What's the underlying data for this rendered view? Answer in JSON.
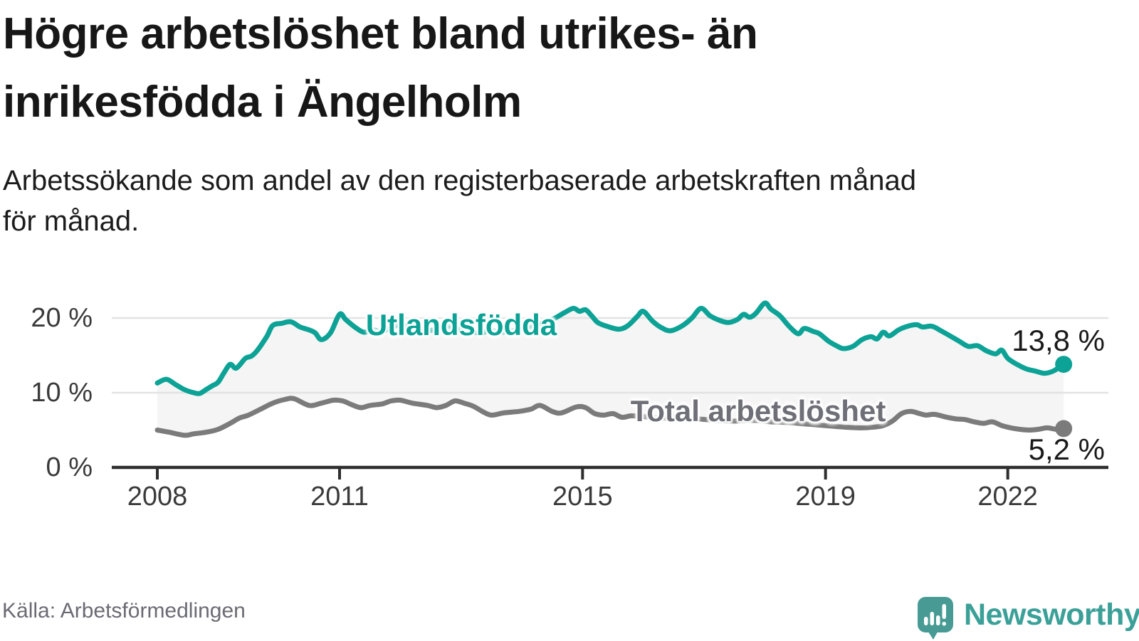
{
  "header": {
    "title_lines": [
      "Högre arbetslöshet bland utrikes- än",
      "inrikesfödda i Ängelholm"
    ],
    "subtitle_lines": [
      "Arbetssökande som andel av den registerbaserade arbetskraften månad",
      "för månad."
    ]
  },
  "footer": {
    "source": "Källa: Arbetsförmedlingen",
    "brand": "Newsworthy"
  },
  "colors": {
    "accent_teal": "#0ca296",
    "line_gray": "#7b7b7b",
    "fill_between": "#f5f5f5",
    "gridline": "#e3e3e3",
    "axis": "#2e2e2e",
    "tick_label": "#3a3a3a",
    "brand_teal": "#3ba098",
    "logo_teal": "#479b94"
  },
  "chart_data": {
    "type": "line",
    "title": "Högre arbetslöshet bland utrikes- än inrikesfödda i Ängelholm",
    "subtitle": "Arbetssökande som andel av den registerbaserade arbetskraften månad för månad.",
    "unit": "%",
    "grid": true,
    "legend_position": "inline-labels",
    "xlim": [
      2007.25,
      2023.66
    ],
    "ylim": [
      0,
      23
    ],
    "x_ticks": [
      {
        "v": 2008,
        "label": "2008"
      },
      {
        "v": 2011,
        "label": "2011"
      },
      {
        "v": 2015,
        "label": "2015"
      },
      {
        "v": 2019,
        "label": "2019"
      },
      {
        "v": 2022,
        "label": "2022"
      }
    ],
    "y_ticks": [
      {
        "v": 0,
        "label": "0 %"
      },
      {
        "v": 10,
        "label": "10 %"
      },
      {
        "v": 20,
        "label": "20 %"
      }
    ],
    "series": [
      {
        "name": "Utlandsfödda",
        "color": "#0ca296",
        "label_color": "#0ca296",
        "end_label": "13,8 %",
        "end_value": 13.8,
        "points": [
          [
            2008.0,
            11.3
          ],
          [
            2008.15,
            11.8
          ],
          [
            2008.3,
            11.1
          ],
          [
            2008.45,
            10.4
          ],
          [
            2008.6,
            10.0
          ],
          [
            2008.7,
            9.9
          ],
          [
            2008.8,
            10.4
          ],
          [
            2008.9,
            10.9
          ],
          [
            2009.0,
            11.4
          ],
          [
            2009.1,
            12.7
          ],
          [
            2009.2,
            13.8
          ],
          [
            2009.3,
            13.3
          ],
          [
            2009.45,
            14.6
          ],
          [
            2009.55,
            14.9
          ],
          [
            2009.65,
            15.7
          ],
          [
            2009.8,
            17.5
          ],
          [
            2009.9,
            19.0
          ],
          [
            2010.05,
            19.3
          ],
          [
            2010.2,
            19.5
          ],
          [
            2010.35,
            18.8
          ],
          [
            2010.5,
            18.4
          ],
          [
            2010.6,
            18.0
          ],
          [
            2010.7,
            17.1
          ],
          [
            2010.85,
            18.0
          ],
          [
            2011.0,
            20.5
          ],
          [
            2011.1,
            19.8
          ],
          [
            2011.25,
            18.8
          ],
          [
            2011.4,
            18.1
          ],
          [
            2011.55,
            18.4
          ],
          [
            2011.7,
            18.2
          ],
          [
            2011.85,
            18.7
          ],
          [
            2012.0,
            19.1
          ],
          [
            2012.2,
            18.6
          ],
          [
            2012.4,
            18.3
          ],
          [
            2012.6,
            18.5
          ],
          [
            2012.75,
            18.9
          ],
          [
            2012.9,
            18.6
          ],
          [
            2013.1,
            18.3
          ],
          [
            2013.3,
            18.0
          ],
          [
            2013.5,
            18.3
          ],
          [
            2013.7,
            18.1
          ],
          [
            2013.9,
            18.4
          ],
          [
            2014.1,
            18.7
          ],
          [
            2014.3,
            19.2
          ],
          [
            2014.5,
            19.8
          ],
          [
            2014.7,
            20.7
          ],
          [
            2014.85,
            21.3
          ],
          [
            2014.95,
            20.9
          ],
          [
            2015.05,
            21.1
          ],
          [
            2015.15,
            20.3
          ],
          [
            2015.25,
            19.4
          ],
          [
            2015.4,
            18.9
          ],
          [
            2015.6,
            18.5
          ],
          [
            2015.75,
            19.0
          ],
          [
            2015.9,
            20.2
          ],
          [
            2016.0,
            20.9
          ],
          [
            2016.15,
            19.6
          ],
          [
            2016.3,
            18.7
          ],
          [
            2016.45,
            18.3
          ],
          [
            2016.65,
            19.0
          ],
          [
            2016.8,
            20.0
          ],
          [
            2016.95,
            21.3
          ],
          [
            2017.1,
            20.3
          ],
          [
            2017.25,
            19.7
          ],
          [
            2017.4,
            19.4
          ],
          [
            2017.55,
            19.8
          ],
          [
            2017.65,
            20.5
          ],
          [
            2017.75,
            20.1
          ],
          [
            2017.85,
            20.6
          ],
          [
            2018.0,
            22.0
          ],
          [
            2018.1,
            21.2
          ],
          [
            2018.25,
            20.3
          ],
          [
            2018.4,
            18.9
          ],
          [
            2018.55,
            17.9
          ],
          [
            2018.65,
            18.6
          ],
          [
            2018.8,
            18.2
          ],
          [
            2018.9,
            17.9
          ],
          [
            2019.05,
            16.9
          ],
          [
            2019.2,
            16.2
          ],
          [
            2019.3,
            15.9
          ],
          [
            2019.45,
            16.2
          ],
          [
            2019.6,
            17.1
          ],
          [
            2019.75,
            17.5
          ],
          [
            2019.85,
            17.2
          ],
          [
            2019.95,
            18.1
          ],
          [
            2020.05,
            17.6
          ],
          [
            2020.2,
            18.4
          ],
          [
            2020.35,
            18.9
          ],
          [
            2020.5,
            19.1
          ],
          [
            2020.6,
            18.8
          ],
          [
            2020.75,
            18.9
          ],
          [
            2020.9,
            18.3
          ],
          [
            2021.05,
            17.6
          ],
          [
            2021.2,
            16.9
          ],
          [
            2021.35,
            16.2
          ],
          [
            2021.5,
            16.3
          ],
          [
            2021.65,
            15.6
          ],
          [
            2021.8,
            15.2
          ],
          [
            2021.9,
            15.7
          ],
          [
            2022.0,
            14.6
          ],
          [
            2022.15,
            13.8
          ],
          [
            2022.3,
            13.2
          ],
          [
            2022.45,
            12.9
          ],
          [
            2022.6,
            12.6
          ],
          [
            2022.75,
            12.9
          ],
          [
            2022.92,
            13.8
          ]
        ]
      },
      {
        "name": "Total arbetslöshet",
        "color": "#7b7b7b",
        "label_color": "#6f6f78",
        "end_label": "5,2 %",
        "end_value": 5.2,
        "points": [
          [
            2008.0,
            5.0
          ],
          [
            2008.2,
            4.7
          ],
          [
            2008.45,
            4.3
          ],
          [
            2008.6,
            4.5
          ],
          [
            2008.8,
            4.7
          ],
          [
            2009.0,
            5.1
          ],
          [
            2009.2,
            5.9
          ],
          [
            2009.35,
            6.6
          ],
          [
            2009.5,
            7.0
          ],
          [
            2009.7,
            7.8
          ],
          [
            2009.9,
            8.6
          ],
          [
            2010.1,
            9.1
          ],
          [
            2010.25,
            9.2
          ],
          [
            2010.5,
            8.3
          ],
          [
            2010.7,
            8.6
          ],
          [
            2010.9,
            9.0
          ],
          [
            2011.05,
            8.9
          ],
          [
            2011.2,
            8.4
          ],
          [
            2011.35,
            8.0
          ],
          [
            2011.5,
            8.3
          ],
          [
            2011.7,
            8.5
          ],
          [
            2011.85,
            8.9
          ],
          [
            2012.0,
            9.0
          ],
          [
            2012.2,
            8.6
          ],
          [
            2012.45,
            8.3
          ],
          [
            2012.6,
            8.0
          ],
          [
            2012.75,
            8.3
          ],
          [
            2012.9,
            8.9
          ],
          [
            2013.05,
            8.6
          ],
          [
            2013.2,
            8.2
          ],
          [
            2013.35,
            7.5
          ],
          [
            2013.5,
            7.0
          ],
          [
            2013.7,
            7.3
          ],
          [
            2013.95,
            7.5
          ],
          [
            2014.15,
            7.8
          ],
          [
            2014.3,
            8.3
          ],
          [
            2014.5,
            7.5
          ],
          [
            2014.65,
            7.3
          ],
          [
            2014.9,
            8.1
          ],
          [
            2015.05,
            8.0
          ],
          [
            2015.2,
            7.2
          ],
          [
            2015.35,
            7.0
          ],
          [
            2015.5,
            7.2
          ],
          [
            2015.65,
            6.7
          ],
          [
            2015.8,
            6.9
          ],
          [
            2016.0,
            6.8
          ],
          [
            2016.3,
            6.6
          ],
          [
            2016.6,
            6.7
          ],
          [
            2016.9,
            6.5
          ],
          [
            2017.2,
            6.3
          ],
          [
            2017.5,
            6.2
          ],
          [
            2017.8,
            6.3
          ],
          [
            2018.1,
            6.1
          ],
          [
            2018.4,
            6.0
          ],
          [
            2018.7,
            5.8
          ],
          [
            2019.0,
            5.6
          ],
          [
            2019.3,
            5.4
          ],
          [
            2019.6,
            5.3
          ],
          [
            2019.8,
            5.4
          ],
          [
            2019.95,
            5.6
          ],
          [
            2020.1,
            6.2
          ],
          [
            2020.25,
            7.2
          ],
          [
            2020.4,
            7.5
          ],
          [
            2020.55,
            7.2
          ],
          [
            2020.65,
            7.0
          ],
          [
            2020.8,
            7.1
          ],
          [
            2021.0,
            6.7
          ],
          [
            2021.15,
            6.5
          ],
          [
            2021.3,
            6.4
          ],
          [
            2021.45,
            6.1
          ],
          [
            2021.6,
            5.9
          ],
          [
            2021.75,
            6.1
          ],
          [
            2021.9,
            5.6
          ],
          [
            2022.05,
            5.3
          ],
          [
            2022.2,
            5.1
          ],
          [
            2022.35,
            5.0
          ],
          [
            2022.5,
            5.1
          ],
          [
            2022.65,
            5.3
          ],
          [
            2022.8,
            5.1
          ],
          [
            2022.92,
            5.2
          ]
        ]
      }
    ]
  }
}
